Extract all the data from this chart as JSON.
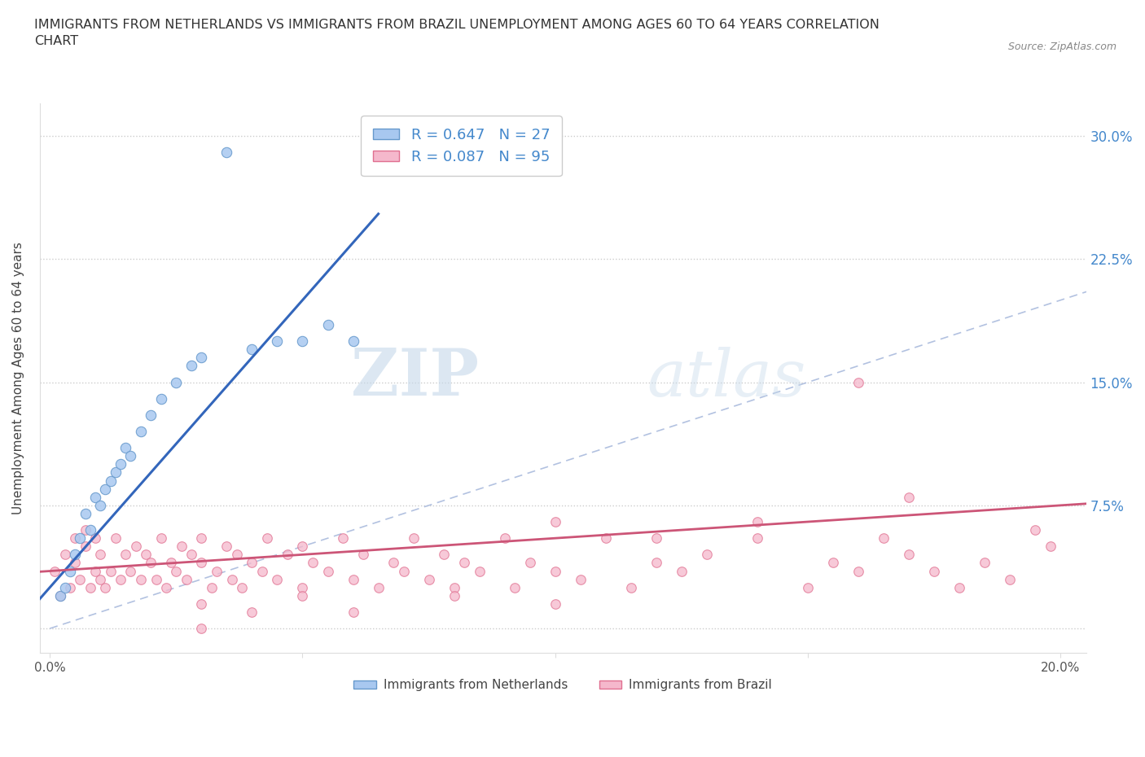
{
  "title": "IMMIGRANTS FROM NETHERLANDS VS IMMIGRANTS FROM BRAZIL UNEMPLOYMENT AMONG AGES 60 TO 64 YEARS CORRELATION\nCHART",
  "source_text": "Source: ZipAtlas.com",
  "ylabel": "Unemployment Among Ages 60 to 64 years",
  "xlim": [
    -0.002,
    0.205
  ],
  "ylim": [
    -0.015,
    0.32
  ],
  "xtick_positions": [
    0.0,
    0.05,
    0.1,
    0.15,
    0.2
  ],
  "xticklabels": [
    "0.0%",
    "",
    "",
    "",
    "20.0%"
  ],
  "ytick_positions": [
    0.0,
    0.075,
    0.15,
    0.225,
    0.3
  ],
  "yticklabels_right": [
    "",
    "7.5%",
    "15.0%",
    "22.5%",
    "30.0%"
  ],
  "netherlands_color": "#a8c8f0",
  "netherlands_edge_color": "#6699cc",
  "brazil_color": "#f5b8cc",
  "brazil_edge_color": "#e07090",
  "netherlands_line_color": "#3366bb",
  "brazil_line_color": "#cc5577",
  "diag_line_color": "#aabbdd",
  "R_netherlands": 0.647,
  "N_netherlands": 27,
  "R_brazil": 0.087,
  "N_brazil": 95,
  "legend_label_netherlands": "Immigrants from Netherlands",
  "legend_label_brazil": "Immigrants from Brazil",
  "watermark_zip": "ZIP",
  "watermark_atlas": "atlas",
  "netherlands_x": [
    0.002,
    0.003,
    0.004,
    0.005,
    0.006,
    0.007,
    0.008,
    0.009,
    0.01,
    0.011,
    0.012,
    0.013,
    0.014,
    0.015,
    0.016,
    0.018,
    0.02,
    0.022,
    0.025,
    0.028,
    0.03,
    0.035,
    0.04,
    0.045,
    0.05,
    0.055,
    0.06
  ],
  "netherlands_y": [
    0.02,
    0.025,
    0.035,
    0.045,
    0.055,
    0.07,
    0.06,
    0.08,
    0.075,
    0.085,
    0.09,
    0.095,
    0.1,
    0.11,
    0.105,
    0.12,
    0.13,
    0.14,
    0.15,
    0.16,
    0.165,
    0.29,
    0.17,
    0.175,
    0.175,
    0.185,
    0.175
  ],
  "brazil_x": [
    0.001,
    0.002,
    0.003,
    0.004,
    0.005,
    0.005,
    0.006,
    0.007,
    0.007,
    0.008,
    0.009,
    0.009,
    0.01,
    0.01,
    0.011,
    0.012,
    0.013,
    0.014,
    0.015,
    0.016,
    0.017,
    0.018,
    0.019,
    0.02,
    0.021,
    0.022,
    0.023,
    0.024,
    0.025,
    0.026,
    0.027,
    0.028,
    0.03,
    0.03,
    0.032,
    0.033,
    0.035,
    0.036,
    0.037,
    0.038,
    0.04,
    0.042,
    0.043,
    0.045,
    0.047,
    0.05,
    0.05,
    0.052,
    0.055,
    0.058,
    0.06,
    0.062,
    0.065,
    0.068,
    0.07,
    0.072,
    0.075,
    0.078,
    0.08,
    0.082,
    0.085,
    0.09,
    0.092,
    0.095,
    0.1,
    0.105,
    0.11,
    0.115,
    0.12,
    0.125,
    0.13,
    0.14,
    0.15,
    0.155,
    0.16,
    0.165,
    0.17,
    0.175,
    0.18,
    0.185,
    0.19,
    0.195,
    0.198,
    0.1,
    0.12,
    0.14,
    0.16,
    0.17,
    0.03,
    0.05,
    0.06,
    0.08,
    0.1,
    0.03,
    0.04
  ],
  "brazil_y": [
    0.035,
    0.02,
    0.045,
    0.025,
    0.04,
    0.055,
    0.03,
    0.05,
    0.06,
    0.025,
    0.035,
    0.055,
    0.03,
    0.045,
    0.025,
    0.035,
    0.055,
    0.03,
    0.045,
    0.035,
    0.05,
    0.03,
    0.045,
    0.04,
    0.03,
    0.055,
    0.025,
    0.04,
    0.035,
    0.05,
    0.03,
    0.045,
    0.04,
    0.055,
    0.025,
    0.035,
    0.05,
    0.03,
    0.045,
    0.025,
    0.04,
    0.035,
    0.055,
    0.03,
    0.045,
    0.025,
    0.05,
    0.04,
    0.035,
    0.055,
    0.03,
    0.045,
    0.025,
    0.04,
    0.035,
    0.055,
    0.03,
    0.045,
    0.025,
    0.04,
    0.035,
    0.055,
    0.025,
    0.04,
    0.035,
    0.03,
    0.055,
    0.025,
    0.04,
    0.035,
    0.045,
    0.055,
    0.025,
    0.04,
    0.035,
    0.055,
    0.045,
    0.035,
    0.025,
    0.04,
    0.03,
    0.06,
    0.05,
    0.065,
    0.055,
    0.065,
    0.15,
    0.08,
    0.015,
    0.02,
    0.01,
    0.02,
    0.015,
    0.0,
    0.01
  ]
}
